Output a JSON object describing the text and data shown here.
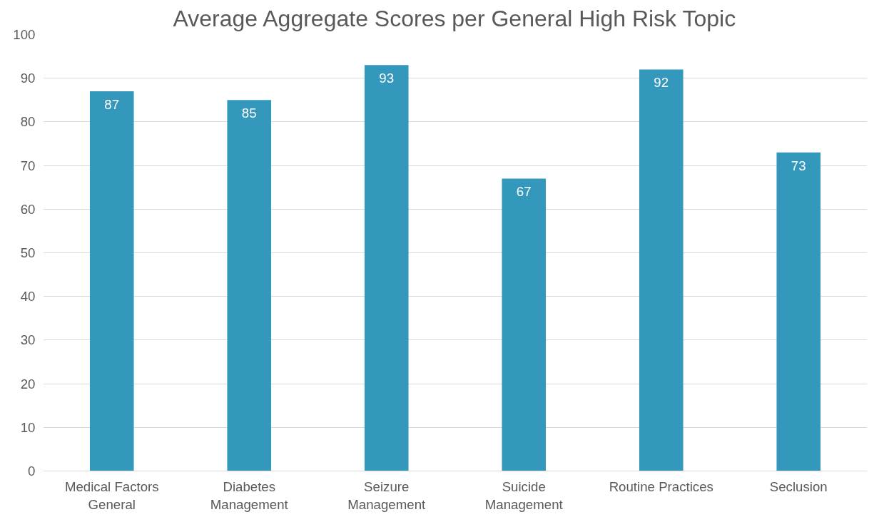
{
  "chart_data": {
    "type": "bar",
    "title": "Average Aggregate Scores per General High Risk Topic",
    "categories": [
      "Medical Factors General",
      "Diabetes Management",
      "Seizure Management",
      "Suicide Management",
      "Routine Practices",
      "Seclusion"
    ],
    "values": [
      87,
      85,
      93,
      67,
      92,
      73
    ],
    "color": "#3497bc",
    "ylim": [
      0,
      100
    ],
    "yticks": [
      0,
      10,
      20,
      30,
      40,
      50,
      60,
      70,
      80,
      90,
      100
    ],
    "grid": "y",
    "data_labels": true
  }
}
